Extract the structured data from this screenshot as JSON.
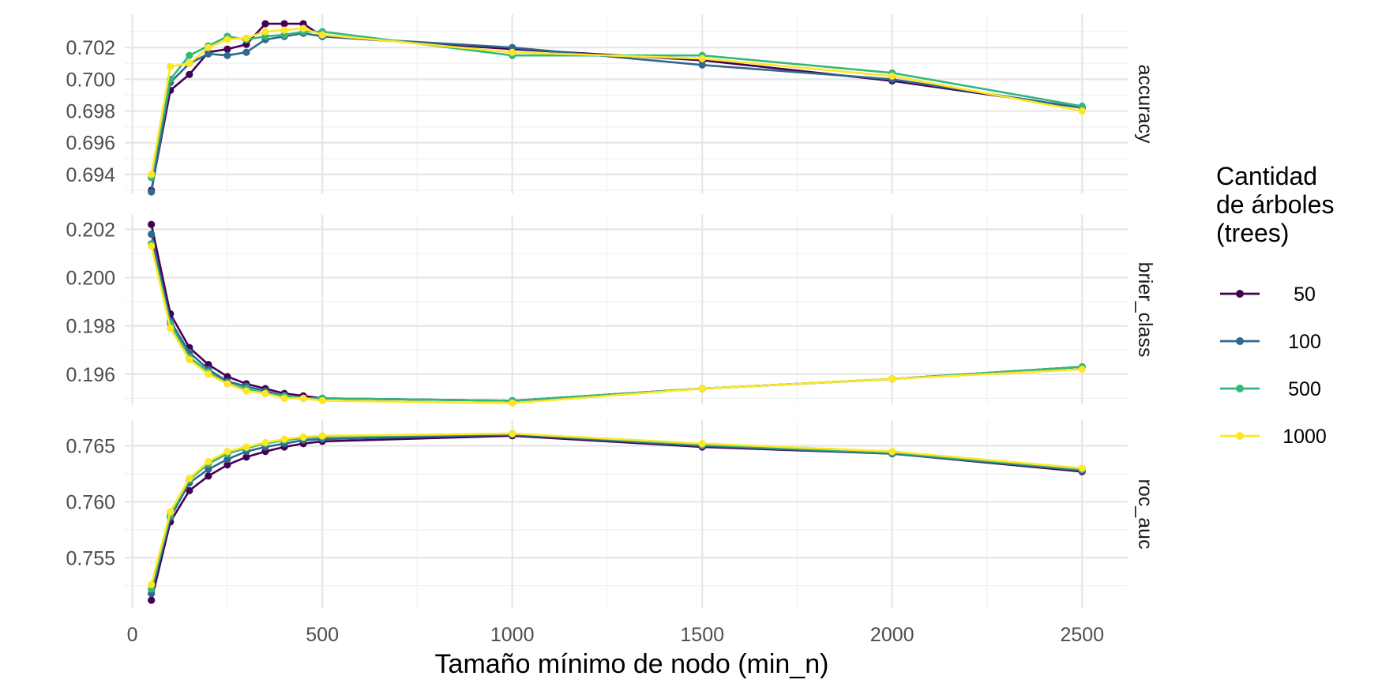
{
  "chart_data": {
    "type": "line",
    "xlabel": "Tamaño mínimo de nodo (min_n)",
    "x_ticks": [
      "0",
      "500",
      "1000",
      "1500",
      "2000",
      "2500"
    ],
    "xlim": [
      -20,
      2620
    ],
    "legend": {
      "title_lines": [
        "Cantidad",
        "de árboles",
        "(trees)"
      ],
      "placement": "right",
      "entries": [
        " 50",
        "100",
        "500",
        "1000"
      ]
    },
    "colors": {
      "50": "#440154",
      "100": "#31688e",
      "500": "#35b779",
      "1000": "#fde725"
    },
    "x": [
      50,
      100,
      150,
      200,
      250,
      300,
      350,
      400,
      450,
      500,
      1000,
      1500,
      2000,
      2500
    ],
    "panels": [
      {
        "facet": "accuracy",
        "ylim": [
          0.6928,
          0.7041
        ],
        "y_ticks": [
          "0.694",
          "0.696",
          "0.698",
          "0.700",
          "0.702"
        ],
        "series": [
          {
            "name": " 50",
            "values": [
              0.693,
              0.6993,
              0.7003,
              0.7017,
              0.7019,
              0.7022,
              0.7035,
              0.7035,
              0.7035,
              0.7027,
              0.7019,
              0.7012,
              0.6999,
              0.6982
            ]
          },
          {
            "name": "100",
            "values": [
              0.6929,
              0.6998,
              0.701,
              0.7016,
              0.7015,
              0.7017,
              0.7025,
              0.7027,
              0.7029,
              0.7027,
              0.702,
              0.7009,
              0.7,
              0.6982
            ]
          },
          {
            "name": "500",
            "values": [
              0.6938,
              0.7,
              0.7015,
              0.7021,
              0.7027,
              0.7025,
              0.7027,
              0.7028,
              0.703,
              0.703,
              0.7015,
              0.7015,
              0.7004,
              0.6983
            ]
          },
          {
            "name": "1000",
            "values": [
              0.694,
              0.7008,
              0.701,
              0.702,
              0.7025,
              0.7026,
              0.703,
              0.7031,
              0.7032,
              0.7028,
              0.7017,
              0.7013,
              0.7002,
              0.698
            ]
          }
        ]
      },
      {
        "facet": "brier_class",
        "ylim": [
          0.19475,
          0.2026
        ],
        "y_ticks": [
          "0.196",
          "0.198",
          "0.200",
          "0.202"
        ],
        "series": [
          {
            "name": " 50",
            "values": [
              0.2022,
              0.1985,
              0.1971,
              0.1964,
              0.1959,
              0.1956,
              0.1954,
              0.1952,
              0.1951,
              0.195,
              0.1949,
              0.1954,
              0.1958,
              0.1963
            ]
          },
          {
            "name": "100",
            "values": [
              0.2018,
              0.1982,
              0.1969,
              0.1962,
              0.1957,
              0.1955,
              0.1953,
              0.1951,
              0.195,
              0.195,
              0.1949,
              0.1954,
              0.1958,
              0.1963
            ]
          },
          {
            "name": "500",
            "values": [
              0.2014,
              0.1981,
              0.1967,
              0.1961,
              0.1956,
              0.1954,
              0.1952,
              0.1951,
              0.195,
              0.195,
              0.1949,
              0.1954,
              0.1958,
              0.1963
            ]
          },
          {
            "name": "1000",
            "values": [
              0.2013,
              0.1979,
              0.1966,
              0.196,
              0.1956,
              0.1953,
              0.1952,
              0.195,
              0.195,
              0.1949,
              0.1948,
              0.1954,
              0.1958,
              0.1962
            ]
          }
        ]
      },
      {
        "facet": "roc_auc",
        "ylim": [
          0.7505,
          0.7673
        ],
        "y_ticks": [
          "0.755",
          "0.760",
          "0.765"
        ],
        "series": [
          {
            "name": " 50",
            "values": [
              0.7512,
              0.7582,
              0.761,
              0.7623,
              0.7633,
              0.764,
              0.7645,
              0.7649,
              0.7652,
              0.7654,
              0.7659,
              0.7649,
              0.7643,
              0.7627
            ]
          },
          {
            "name": "100",
            "values": [
              0.7518,
              0.7586,
              0.7617,
              0.7629,
              0.7638,
              0.7645,
              0.7649,
              0.7652,
              0.7655,
              0.7656,
              0.766,
              0.765,
              0.7643,
              0.7628
            ]
          },
          {
            "name": "500",
            "values": [
              0.7522,
              0.7588,
              0.762,
              0.7634,
              0.7643,
              0.7648,
              0.7652,
              0.7655,
              0.7657,
              0.7658,
              0.7661,
              0.7651,
              0.7644,
              0.7629
            ]
          },
          {
            "name": "1000",
            "values": [
              0.7526,
              0.7591,
              0.7621,
              0.7636,
              0.7645,
              0.7649,
              0.7653,
              0.7656,
              0.7658,
              0.7659,
              0.7661,
              0.7652,
              0.7645,
              0.763
            ]
          }
        ]
      }
    ]
  }
}
